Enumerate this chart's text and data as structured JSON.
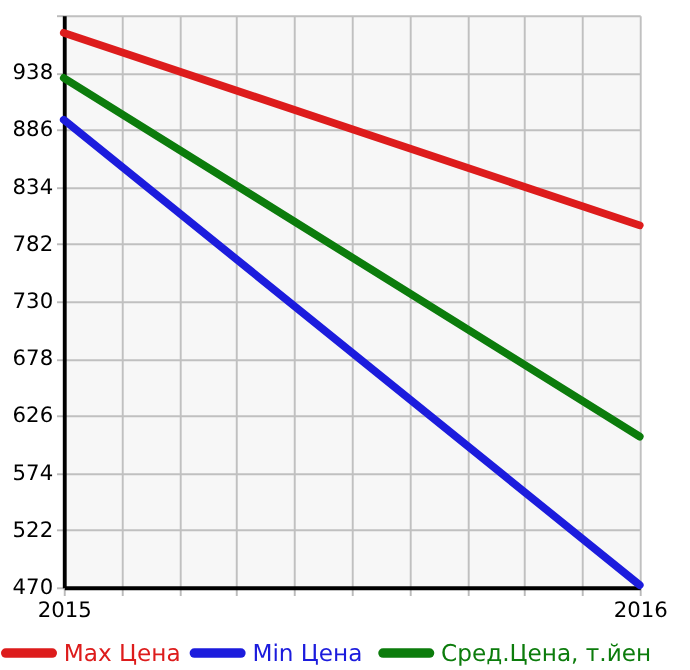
{
  "chart_data": {
    "type": "line",
    "x": [
      2015,
      2016
    ],
    "series": [
      {
        "name": "Max Цена",
        "color": "#dd1c1c",
        "values": [
          974,
          799
        ]
      },
      {
        "name": "Min Цена",
        "color": "#1c1cdd",
        "values": [
          895,
          472
        ]
      },
      {
        "name": "Сред.Цена, т.йен",
        "color": "#0c7c0c",
        "values": [
          933,
          607
        ]
      }
    ],
    "xlim": [
      2015,
      2016
    ],
    "xticks": [
      2015,
      {
        "value": 2015.1,
        "label": null
      },
      {
        "value": 2015.2,
        "label": null
      },
      {
        "value": 2015.3,
        "label": null
      },
      {
        "value": 2015.4,
        "label": null
      },
      {
        "value": 2015.5,
        "label": null
      },
      {
        "value": 2015.6,
        "label": null
      },
      {
        "value": 2015.7,
        "label": null
      },
      {
        "value": 2015.8,
        "label": null
      },
      {
        "value": 2015.9,
        "label": null
      },
      2016
    ],
    "ylim": [
      470,
      990
    ],
    "yticks": [
      470,
      522,
      574,
      626,
      678,
      730,
      782,
      834,
      886,
      938,
      {
        "value": 990,
        "label": null
      }
    ],
    "grid": true,
    "legend": "bottom",
    "marker": "none",
    "line_style": "solid"
  }
}
